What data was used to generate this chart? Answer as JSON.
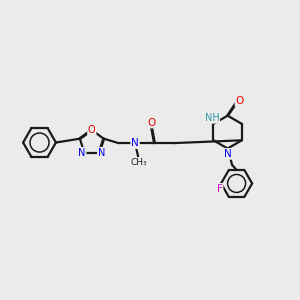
{
  "background_color": "#ebebeb",
  "bond_color": "#1a1a1a",
  "atom_colors": {
    "N": "#0000ee",
    "O": "#ee0000",
    "F": "#cc00cc",
    "NH": "#3399aa",
    "C": "#1a1a1a"
  },
  "bond_lw": 1.6,
  "font_size": 7.5
}
